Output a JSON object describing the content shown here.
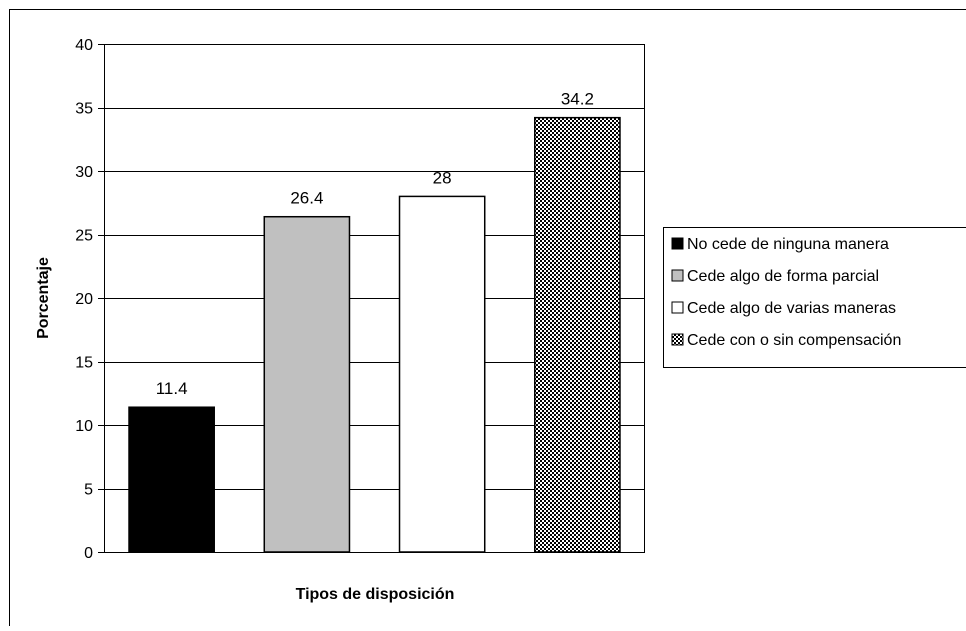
{
  "chart_data": {
    "type": "bar",
    "title": "",
    "xlabel": "Tipos de disposición",
    "ylabel": "Porcentaje",
    "ylim": [
      0,
      40
    ],
    "yticks": [
      0,
      5,
      10,
      15,
      20,
      25,
      30,
      35,
      40
    ],
    "grid": true,
    "legend_position": "right",
    "categories": [
      "No cede de ninguna manera",
      "Cede algo de forma parcial",
      "Cede algo de varias maneras",
      "Cede con o sin compensación"
    ],
    "values": [
      11.4,
      26.4,
      28,
      34.2
    ],
    "value_labels": [
      "11.4",
      "26.4",
      "28",
      "34.2"
    ],
    "fills": [
      "#000000",
      "#c0c0c0",
      "#ffffff",
      "checkered"
    ]
  }
}
